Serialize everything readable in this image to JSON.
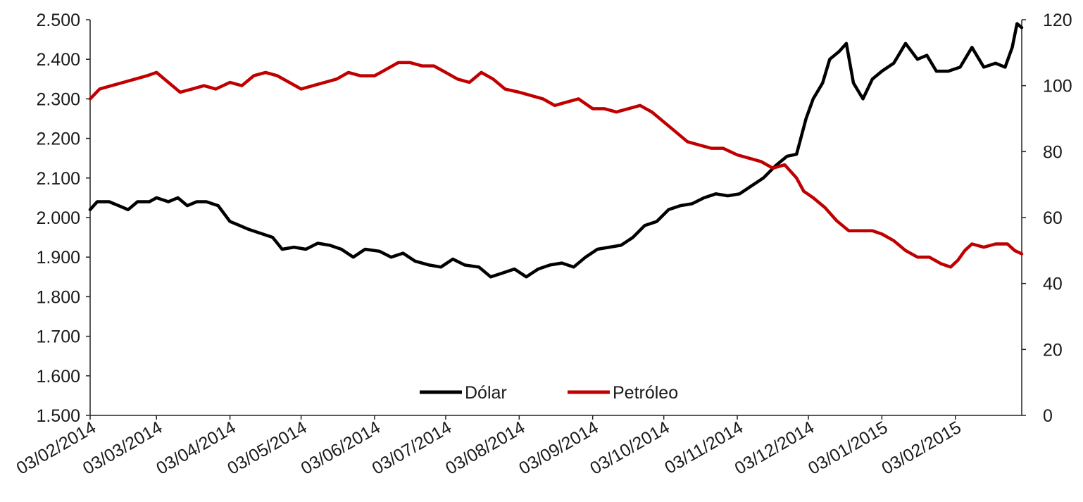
{
  "chart_data": {
    "type": "line",
    "title": "",
    "xlabel": "",
    "ylabel": "",
    "y2label": "",
    "grid": false,
    "legend_position": "bottom-center",
    "x_tick_labels": [
      "03/02/2014",
      "03/03/2014",
      "03/04/2014",
      "03/05/2014",
      "03/06/2014",
      "03/07/2014",
      "03/08/2014",
      "03/09/2014",
      "03/10/2014",
      "03/11/2014",
      "03/12/2014",
      "03/01/2015",
      "03/02/2015"
    ],
    "x_range": [
      "03/02/2014",
      "03/03/2015"
    ],
    "y_left": {
      "range": [
        1.5,
        2.5
      ],
      "tick_labels": [
        "1.500",
        "1.600",
        "1.700",
        "1.800",
        "1.900",
        "2.000",
        "2.100",
        "2.200",
        "2.300",
        "2.400",
        "2.500"
      ]
    },
    "y_right": {
      "range": [
        0,
        120
      ],
      "tick_labels": [
        "0",
        "20",
        "40",
        "60",
        "80",
        "100",
        "120"
      ]
    },
    "series": [
      {
        "name": "Dólar",
        "axis": "left",
        "color": "#000000",
        "points": [
          [
            "03/02/2014",
            2.02
          ],
          [
            "06/02/2014",
            2.04
          ],
          [
            "11/02/2014",
            2.04
          ],
          [
            "15/02/2014",
            2.03
          ],
          [
            "19/02/2014",
            2.02
          ],
          [
            "23/02/2014",
            2.04
          ],
          [
            "28/02/2014",
            2.04
          ],
          [
            "03/03/2014",
            2.05
          ],
          [
            "08/03/2014",
            2.04
          ],
          [
            "12/03/2014",
            2.05
          ],
          [
            "16/03/2014",
            2.03
          ],
          [
            "20/03/2014",
            2.04
          ],
          [
            "24/03/2014",
            2.04
          ],
          [
            "29/03/2014",
            2.03
          ],
          [
            "03/04/2014",
            1.99
          ],
          [
            "07/04/2014",
            1.98
          ],
          [
            "11/04/2014",
            1.97
          ],
          [
            "16/04/2014",
            1.96
          ],
          [
            "21/04/2014",
            1.95
          ],
          [
            "25/04/2014",
            1.92
          ],
          [
            "30/04/2014",
            1.925
          ],
          [
            "05/05/2014",
            1.92
          ],
          [
            "10/05/2014",
            1.935
          ],
          [
            "15/05/2014",
            1.93
          ],
          [
            "20/05/2014",
            1.92
          ],
          [
            "25/05/2014",
            1.9
          ],
          [
            "30/05/2014",
            1.92
          ],
          [
            "05/06/2014",
            1.915
          ],
          [
            "10/06/2014",
            1.9
          ],
          [
            "15/06/2014",
            1.91
          ],
          [
            "20/06/2014",
            1.89
          ],
          [
            "26/06/2014",
            1.88
          ],
          [
            "01/07/2014",
            1.875
          ],
          [
            "06/07/2014",
            1.895
          ],
          [
            "11/07/2014",
            1.88
          ],
          [
            "17/07/2014",
            1.875
          ],
          [
            "22/07/2014",
            1.85
          ],
          [
            "27/07/2014",
            1.86
          ],
          [
            "01/08/2014",
            1.87
          ],
          [
            "06/08/2014",
            1.85
          ],
          [
            "11/08/2014",
            1.87
          ],
          [
            "16/08/2014",
            1.88
          ],
          [
            "21/08/2014",
            1.885
          ],
          [
            "26/08/2014",
            1.875
          ],
          [
            "31/08/2014",
            1.9
          ],
          [
            "05/09/2014",
            1.92
          ],
          [
            "10/09/2014",
            1.925
          ],
          [
            "15/09/2014",
            1.93
          ],
          [
            "20/09/2014",
            1.95
          ],
          [
            "25/09/2014",
            1.98
          ],
          [
            "30/09/2014",
            1.99
          ],
          [
            "05/10/2014",
            2.02
          ],
          [
            "10/10/2014",
            2.03
          ],
          [
            "15/10/2014",
            2.035
          ],
          [
            "20/10/2014",
            2.05
          ],
          [
            "25/10/2014",
            2.06
          ],
          [
            "30/10/2014",
            2.055
          ],
          [
            "04/11/2014",
            2.06
          ],
          [
            "09/11/2014",
            2.08
          ],
          [
            "14/11/2014",
            2.1
          ],
          [
            "19/11/2014",
            2.13
          ],
          [
            "24/11/2014",
            2.155
          ],
          [
            "28/11/2014",
            2.16
          ],
          [
            "02/12/2014",
            2.25
          ],
          [
            "05/12/2014",
            2.3
          ],
          [
            "09/12/2014",
            2.34
          ],
          [
            "12/12/2014",
            2.4
          ],
          [
            "16/12/2014",
            2.42
          ],
          [
            "19/12/2014",
            2.44
          ],
          [
            "22/12/2014",
            2.34
          ],
          [
            "26/12/2014",
            2.3
          ],
          [
            "30/12/2014",
            2.35
          ],
          [
            "03/01/2015",
            2.37
          ],
          [
            "08/01/2015",
            2.39
          ],
          [
            "13/01/2015",
            2.44
          ],
          [
            "18/01/2015",
            2.4
          ],
          [
            "22/01/2015",
            2.41
          ],
          [
            "26/01/2015",
            2.37
          ],
          [
            "31/01/2015",
            2.37
          ],
          [
            "05/02/2015",
            2.38
          ],
          [
            "10/02/2015",
            2.43
          ],
          [
            "15/02/2015",
            2.38
          ],
          [
            "20/02/2015",
            2.39
          ],
          [
            "24/02/2015",
            2.38
          ],
          [
            "27/02/2015",
            2.43
          ],
          [
            "01/03/2015",
            2.49
          ],
          [
            "03/03/2015",
            2.48
          ]
        ]
      },
      {
        "name": "Petróleo",
        "axis": "right",
        "color": "#c00000",
        "points": [
          [
            "03/02/2014",
            96
          ],
          [
            "07/02/2014",
            99
          ],
          [
            "12/02/2014",
            100
          ],
          [
            "17/02/2014",
            101
          ],
          [
            "22/02/2014",
            102
          ],
          [
            "27/02/2014",
            103
          ],
          [
            "03/03/2014",
            104
          ],
          [
            "08/03/2014",
            101
          ],
          [
            "13/03/2014",
            98
          ],
          [
            "18/03/2014",
            99
          ],
          [
            "23/03/2014",
            100
          ],
          [
            "28/03/2014",
            99
          ],
          [
            "03/04/2014",
            101
          ],
          [
            "08/04/2014",
            100
          ],
          [
            "13/04/2014",
            103
          ],
          [
            "18/04/2014",
            104
          ],
          [
            "23/04/2014",
            103
          ],
          [
            "28/04/2014",
            101
          ],
          [
            "03/05/2014",
            99
          ],
          [
            "08/05/2014",
            100
          ],
          [
            "13/05/2014",
            101
          ],
          [
            "18/05/2014",
            102
          ],
          [
            "23/05/2014",
            104
          ],
          [
            "28/05/2014",
            103
          ],
          [
            "03/06/2014",
            103
          ],
          [
            "08/06/2014",
            105
          ],
          [
            "13/06/2014",
            107
          ],
          [
            "18/06/2014",
            107
          ],
          [
            "23/06/2014",
            106
          ],
          [
            "28/06/2014",
            106
          ],
          [
            "03/07/2014",
            104
          ],
          [
            "08/07/2014",
            102
          ],
          [
            "13/07/2014",
            101
          ],
          [
            "18/07/2014",
            104
          ],
          [
            "23/07/2014",
            102
          ],
          [
            "28/07/2014",
            99
          ],
          [
            "03/08/2014",
            98
          ],
          [
            "08/08/2014",
            97
          ],
          [
            "13/08/2014",
            96
          ],
          [
            "18/08/2014",
            94
          ],
          [
            "23/08/2014",
            95
          ],
          [
            "28/08/2014",
            96
          ],
          [
            "03/09/2014",
            93
          ],
          [
            "08/09/2014",
            93
          ],
          [
            "13/09/2014",
            92
          ],
          [
            "18/09/2014",
            93
          ],
          [
            "23/09/2014",
            94
          ],
          [
            "28/09/2014",
            92
          ],
          [
            "03/10/2014",
            89
          ],
          [
            "08/10/2014",
            86
          ],
          [
            "13/10/2014",
            83
          ],
          [
            "18/10/2014",
            82
          ],
          [
            "23/10/2014",
            81
          ],
          [
            "28/10/2014",
            81
          ],
          [
            "03/11/2014",
            79
          ],
          [
            "08/11/2014",
            78
          ],
          [
            "13/11/2014",
            77
          ],
          [
            "18/11/2014",
            75
          ],
          [
            "23/11/2014",
            76
          ],
          [
            "28/11/2014",
            72
          ],
          [
            "01/12/2014",
            68
          ],
          [
            "05/12/2014",
            66
          ],
          [
            "10/12/2014",
            63
          ],
          [
            "15/12/2014",
            59
          ],
          [
            "20/12/2014",
            56
          ],
          [
            "25/12/2014",
            56
          ],
          [
            "30/12/2014",
            56
          ],
          [
            "03/01/2015",
            55
          ],
          [
            "08/01/2015",
            53
          ],
          [
            "13/01/2015",
            50
          ],
          [
            "18/01/2015",
            48
          ],
          [
            "23/01/2015",
            48
          ],
          [
            "28/01/2015",
            46
          ],
          [
            "01/02/2015",
            45
          ],
          [
            "04/02/2015",
            47
          ],
          [
            "07/02/2015",
            50
          ],
          [
            "10/02/2015",
            52
          ],
          [
            "15/02/2015",
            51
          ],
          [
            "20/02/2015",
            52
          ],
          [
            "25/02/2015",
            52
          ],
          [
            "28/02/2015",
            50
          ],
          [
            "03/03/2015",
            49
          ]
        ]
      }
    ]
  }
}
